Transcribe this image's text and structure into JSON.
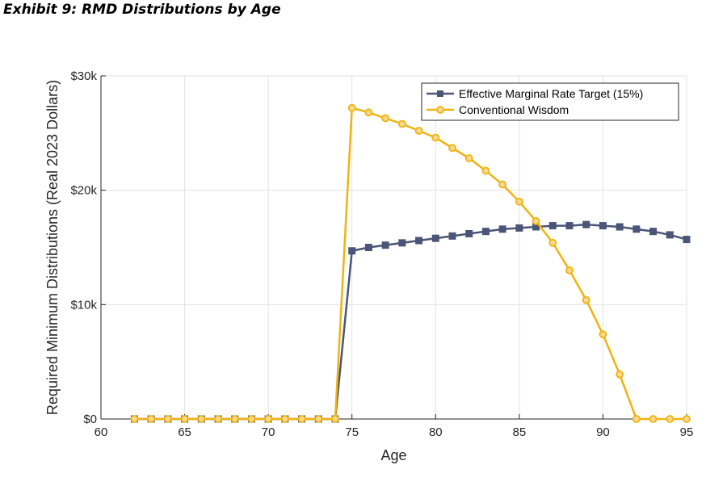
{
  "page": {
    "exhibit_title": "Exhibit 9: RMD Distributions by Age"
  },
  "chart_data": {
    "type": "line",
    "title": "",
    "xlabel": "Age",
    "ylabel": "Required Minimum Distributions (Real 2023 Dollars)",
    "xlim": [
      60,
      95
    ],
    "ylim": [
      0,
      30000
    ],
    "x_ticks": [
      60,
      65,
      70,
      75,
      80,
      85,
      90,
      95
    ],
    "y_ticks": [
      0,
      10000,
      20000,
      30000
    ],
    "y_tick_labels": [
      "$0",
      "$10k",
      "$20k",
      "$30k"
    ],
    "grid": true,
    "legend_position": "top-right",
    "x": [
      62,
      63,
      64,
      65,
      66,
      67,
      68,
      69,
      70,
      71,
      72,
      73,
      74,
      75,
      76,
      77,
      78,
      79,
      80,
      81,
      82,
      83,
      84,
      85,
      86,
      87,
      88,
      89,
      90,
      91,
      92,
      93,
      94,
      95
    ],
    "series": [
      {
        "name": "Effective Marginal Rate Target (15%)",
        "color": "#4a5578",
        "marker": "square",
        "values": [
          0,
          0,
          0,
          0,
          0,
          0,
          0,
          0,
          0,
          0,
          0,
          0,
          0,
          14700,
          15000,
          15200,
          15400,
          15600,
          15800,
          16000,
          16200,
          16400,
          16600,
          16700,
          16800,
          16900,
          16900,
          17000,
          16900,
          16800,
          16600,
          16400,
          16100,
          15700
        ]
      },
      {
        "name": "Conventional Wisdom",
        "color": "#f0b310",
        "marker": "circle",
        "values": [
          0,
          0,
          0,
          0,
          0,
          0,
          0,
          0,
          0,
          0,
          0,
          0,
          0,
          27200,
          26800,
          26300,
          25800,
          25200,
          24600,
          23700,
          22800,
          21700,
          20500,
          19000,
          17300,
          15400,
          13000,
          10400,
          7400,
          3900,
          0,
          0,
          0,
          0
        ]
      }
    ]
  }
}
